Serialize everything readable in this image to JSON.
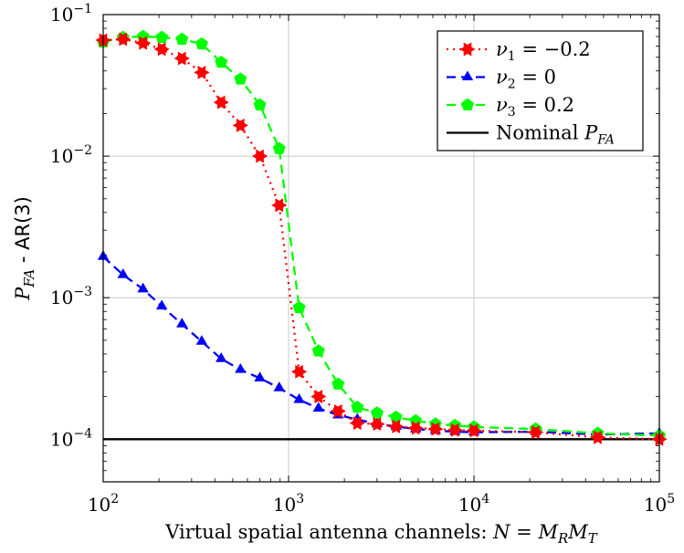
{
  "chart_data": {
    "type": "line",
    "xscale": "log",
    "yscale": "log",
    "xlim": [
      100,
      100000
    ],
    "ylim": [
      5e-05,
      0.1
    ],
    "grid": true,
    "legend_position": "top-right",
    "xlabel": "Virtual spatial antenna channels: N = M_R M_T",
    "ylabel": "P_FA - AR(3)",
    "x_ticks": [
      {
        "value": 100,
        "base": "10",
        "exp": "2"
      },
      {
        "value": 1000,
        "base": "10",
        "exp": "3"
      },
      {
        "value": 10000,
        "base": "10",
        "exp": "4"
      },
      {
        "value": 100000,
        "base": "10",
        "exp": "5"
      }
    ],
    "y_ticks": [
      {
        "value": 0.0001,
        "base": "10",
        "exp": "−4"
      },
      {
        "value": 0.001,
        "base": "10",
        "exp": "−3"
      },
      {
        "value": 0.01,
        "base": "10",
        "exp": "−2"
      },
      {
        "value": 0.1,
        "base": "10",
        "exp": "−1"
      }
    ],
    "series": [
      {
        "name": "ν1 = −0.2",
        "label_var": "ν",
        "label_sub": "1",
        "label_rest": " = −0.2",
        "color": "#ff0000",
        "dash": "2,5",
        "marker": "star",
        "x": [
          100,
          128,
          164,
          207,
          266,
          340,
          433,
          550,
          700,
          890,
          1140,
          1450,
          1850,
          2350,
          3000,
          3800,
          4850,
          6200,
          7900,
          10000,
          21500,
          46500,
          100000
        ],
        "y": [
          0.066,
          0.067,
          0.063,
          0.057,
          0.049,
          0.039,
          0.024,
          0.0165,
          0.01,
          0.0045,
          0.0003,
          0.0002,
          0.000158,
          0.00013,
          0.000128,
          0.000123,
          0.00012,
          0.000118,
          0.000116,
          0.000115,
          0.000112,
          0.000103,
          0.0001
        ]
      },
      {
        "name": "ν2 = 0",
        "label_var": "ν",
        "label_sub": "2",
        "label_rest": " = 0",
        "color": "#0000ff",
        "dash": "10,6",
        "marker": "triangle",
        "x": [
          100,
          128,
          164,
          207,
          266,
          340,
          433,
          550,
          700,
          890,
          1140,
          1450,
          1850,
          2350,
          3000,
          3800,
          4850,
          6200,
          7900,
          10000,
          21500,
          46500,
          100000
        ],
        "y": [
          0.00195,
          0.00145,
          0.00115,
          0.00087,
          0.00065,
          0.00049,
          0.00037,
          0.00031,
          0.00027,
          0.00023,
          0.00019,
          0.000165,
          0.000148,
          0.000138,
          0.000128,
          0.000123,
          0.000118,
          0.000115,
          0.000113,
          0.000112,
          0.000113,
          0.000108,
          0.00011
        ]
      },
      {
        "name": "ν3 = 0.2",
        "label_var": "ν",
        "label_sub": "3",
        "label_rest": " = 0.2",
        "color": "#00ff00",
        "dash": "10,6",
        "marker": "pentagon",
        "x": [
          100,
          128,
          164,
          207,
          266,
          340,
          433,
          550,
          700,
          890,
          1140,
          1450,
          1850,
          2350,
          3000,
          3800,
          4850,
          6200,
          7900,
          10000,
          21500,
          46500,
          100000
        ],
        "y": [
          0.064,
          0.069,
          0.07,
          0.069,
          0.067,
          0.062,
          0.046,
          0.035,
          0.023,
          0.0113,
          0.00085,
          0.00042,
          0.000245,
          0.000168,
          0.000153,
          0.000143,
          0.000135,
          0.000128,
          0.000125,
          0.000122,
          0.000118,
          0.00011,
          0.000106
        ]
      },
      {
        "name": "Nominal P_FA",
        "label_var": "",
        "label_sub": "",
        "label_rest": "Nominal ",
        "label_tail_var": "P",
        "label_tail_sub": "FA",
        "color": "#000000",
        "dash": "",
        "marker": "none",
        "x": [
          100,
          100000
        ],
        "y": [
          0.0001,
          0.0001
        ]
      }
    ]
  }
}
